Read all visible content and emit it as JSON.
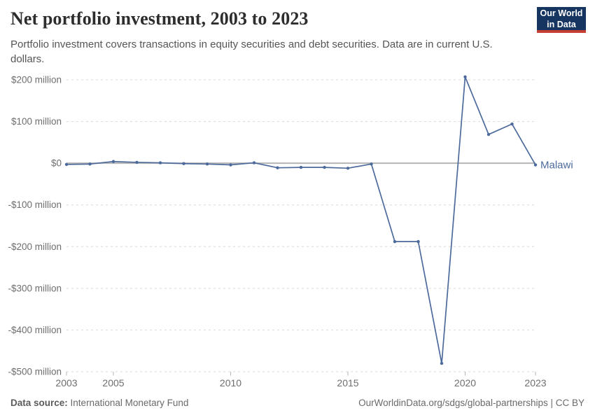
{
  "header": {
    "title": "Net portfolio investment, 2003 to 2023",
    "subtitle": "Portfolio investment covers transactions in equity securities and debt securities. Data are in current U.S. dollars.",
    "logo": {
      "line1": "Our World",
      "line2": "in Data"
    }
  },
  "chart_data": {
    "type": "line",
    "title": "Net portfolio investment, 2003 to 2023",
    "unit": "current US$, millions",
    "x": [
      2003,
      2004,
      2005,
      2006,
      2007,
      2008,
      2009,
      2010,
      2011,
      2012,
      2013,
      2014,
      2015,
      2016,
      2017,
      2018,
      2019,
      2020,
      2021,
      2022,
      2023
    ],
    "series": [
      {
        "name": "Malawi",
        "values": [
          -3,
          -2,
          4,
          2,
          1,
          -1,
          -2,
          -4,
          1,
          -11,
          -10,
          -10,
          -12,
          -2,
          -188,
          -188,
          -480,
          207,
          69,
          94,
          -4
        ]
      }
    ],
    "xlim": [
      2003,
      2023
    ],
    "ylim": [
      -500,
      200
    ],
    "grid": true,
    "legend_position": "end-of-line",
    "entity_label": "Malawi",
    "x_ticks": [
      2003,
      2005,
      2010,
      2015,
      2020,
      2023
    ],
    "y_ticks": [
      {
        "value": 200,
        "label": "$200 million"
      },
      {
        "value": 100,
        "label": "$100 million"
      },
      {
        "value": 0,
        "label": "$0"
      },
      {
        "value": -100,
        "label": "-$100 million"
      },
      {
        "value": -200,
        "label": "-$200 million"
      },
      {
        "value": -300,
        "label": "-$300 million"
      },
      {
        "value": -400,
        "label": "-$400 million"
      },
      {
        "value": -500,
        "label": "-$500 million"
      }
    ]
  },
  "footer": {
    "source_label": "Data source:",
    "source_value": "International Monetary Fund",
    "url_text": "OurWorldinData.org/sdgs/global-partnerships | CC BY"
  },
  "colors": {
    "line": "#4c6a9c",
    "grid": "#d9d9d9",
    "zero_line": "#b5b5b5",
    "tick": "#b5b5b5",
    "axis_text": "#6e6e6e",
    "logo_bg": "#163560",
    "logo_red": "#c53d33"
  }
}
